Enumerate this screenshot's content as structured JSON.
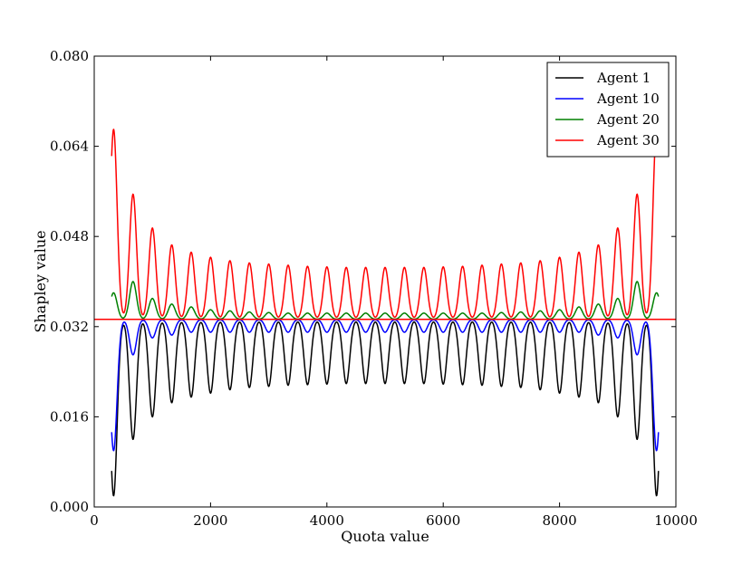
{
  "chart_data": {
    "type": "line",
    "title": "",
    "xlabel": "Quota value",
    "ylabel": "Shapley value",
    "xlim": [
      0,
      10000
    ],
    "ylim": [
      0,
      0.08
    ],
    "xticks": [
      0,
      2000,
      4000,
      6000,
      8000,
      10000
    ],
    "xtick_labels": [
      "0",
      "2000",
      "4000",
      "6000",
      "8000",
      "10000"
    ],
    "yticks": [
      0.0,
      0.016,
      0.032,
      0.048,
      0.064,
      0.08
    ],
    "ytick_labels": [
      "0.000",
      "0.016",
      "0.032",
      "0.048",
      "0.064",
      "0.080"
    ],
    "grid": false,
    "legend_position": "top-right",
    "baseline": 0.0333,
    "peak_quotas": [
      333,
      667,
      1000,
      1333,
      1667,
      2000,
      2333,
      2667,
      3000,
      3333,
      3667,
      4000,
      4333,
      4667,
      5000,
      5333,
      5667,
      6000,
      6333,
      6667,
      7000,
      7333,
      7667,
      8000,
      8333,
      8667,
      9000,
      9333,
      9667
    ],
    "series": [
      {
        "name": "Agent 1",
        "color": "#000000",
        "values": [
          0.002,
          0.012,
          0.016,
          0.0185,
          0.0195,
          0.0202,
          0.0208,
          0.0212,
          0.0214,
          0.0216,
          0.0217,
          0.0218,
          0.0219,
          0.0219,
          0.0219,
          0.0219,
          0.0219,
          0.0218,
          0.0217,
          0.0216,
          0.0214,
          0.0212,
          0.0208,
          0.0202,
          0.0195,
          0.0185,
          0.016,
          0.012,
          0.002
        ]
      },
      {
        "name": "Agent 10",
        "color": "#0000ff",
        "values": [
          0.01,
          0.027,
          0.03,
          0.0305,
          0.031,
          0.031,
          0.031,
          0.031,
          0.031,
          0.031,
          0.031,
          0.031,
          0.031,
          0.031,
          0.031,
          0.031,
          0.031,
          0.031,
          0.031,
          0.031,
          0.031,
          0.031,
          0.031,
          0.031,
          0.031,
          0.0305,
          0.03,
          0.027,
          0.01
        ]
      },
      {
        "name": "Agent 20",
        "color": "#008000",
        "values": [
          0.038,
          0.04,
          0.037,
          0.036,
          0.0355,
          0.035,
          0.0348,
          0.0346,
          0.0345,
          0.0344,
          0.0344,
          0.0344,
          0.0344,
          0.0344,
          0.0344,
          0.0344,
          0.0344,
          0.0344,
          0.0344,
          0.0344,
          0.0345,
          0.0346,
          0.0348,
          0.035,
          0.0355,
          0.036,
          0.037,
          0.04,
          0.038
        ]
      },
      {
        "name": "Agent 30",
        "color": "#ff0000",
        "values": [
          0.067,
          0.0555,
          0.0495,
          0.0465,
          0.0452,
          0.0443,
          0.0437,
          0.0433,
          0.0431,
          0.0429,
          0.0427,
          0.0426,
          0.0425,
          0.0425,
          0.0425,
          0.0425,
          0.0425,
          0.0426,
          0.0427,
          0.0429,
          0.0431,
          0.0433,
          0.0437,
          0.0443,
          0.0452,
          0.0465,
          0.0495,
          0.0555,
          0.067
        ]
      }
    ]
  }
}
